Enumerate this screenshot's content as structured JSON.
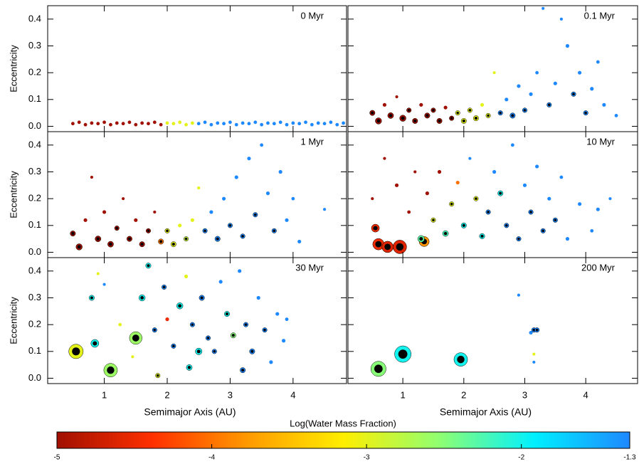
{
  "chart_data": [
    {
      "type": "scatter",
      "title": "0 Myr",
      "ylabel": "Eccentricity",
      "xlim": [
        0.1,
        4.85
      ],
      "ylim": [
        -0.02,
        0.45
      ],
      "xticks": [
        1,
        2,
        3,
        4
      ],
      "yticks": [
        {
          "value": 0,
          "label": "0.0"
        },
        0.1,
        0.2,
        0.3,
        0.4
      ],
      "x": [
        0.5,
        0.6,
        0.7,
        0.8,
        0.9,
        1.0,
        1.1,
        1.2,
        1.3,
        1.4,
        1.5,
        1.6,
        1.7,
        1.8,
        1.9,
        2.0,
        2.1,
        2.2,
        2.3,
        2.4,
        2.5,
        2.6,
        2.7,
        2.8,
        2.9,
        3.0,
        3.1,
        3.2,
        3.3,
        3.4,
        3.5,
        3.6,
        3.7,
        3.8,
        3.9,
        4.0,
        4.1,
        4.2,
        4.3,
        4.4,
        4.5,
        4.6,
        4.7,
        4.8
      ],
      "y": [
        0.01,
        0.015,
        0.006,
        0.012,
        0.01,
        0.015,
        0.006,
        0.012,
        0.01,
        0.015,
        0.006,
        0.012,
        0.01,
        0.015,
        0.006,
        0.012,
        0.01,
        0.015,
        0.006,
        0.012,
        0.01,
        0.015,
        0.006,
        0.012,
        0.01,
        0.015,
        0.006,
        0.012,
        0.01,
        0.015,
        0.006,
        0.012,
        0.01,
        0.015,
        0.006,
        0.012,
        0.01,
        0.015,
        0.006,
        0.012,
        0.01,
        0.015,
        0.006,
        0.012
      ],
      "mass": [
        0.008,
        0.008,
        0.008,
        0.008,
        0.008,
        0.008,
        0.008,
        0.008,
        0.008,
        0.008,
        0.008,
        0.008,
        0.008,
        0.008,
        0.008,
        0.008,
        0.008,
        0.008,
        0.008,
        0.008,
        0.008,
        0.008,
        0.008,
        0.008,
        0.008,
        0.008,
        0.008,
        0.008,
        0.008,
        0.008,
        0.008,
        0.008,
        0.008,
        0.008,
        0.008,
        0.008,
        0.008,
        0.008,
        0.008,
        0.008,
        0.008,
        0.008,
        0.008,
        0.008
      ],
      "water": [
        -5,
        -5,
        -5,
        -5,
        -5,
        -5,
        -5,
        -5,
        -5,
        -5,
        -5,
        -5,
        -5,
        -5,
        -5,
        -3,
        -3,
        -3,
        -3,
        -3,
        -1.3,
        -1.3,
        -1.3,
        -1.3,
        -1.3,
        -1.3,
        -1.3,
        -1.3,
        -1.3,
        -1.3,
        -1.3,
        -1.3,
        -1.3,
        -1.3,
        -1.3,
        -1.3,
        -1.3,
        -1.3,
        -1.3,
        -1.3,
        -1.3,
        -1.3,
        -1.3,
        -1.3
      ]
    },
    {
      "type": "scatter",
      "title": "0.1 Myr",
      "xlim": [
        0.1,
        4.85
      ],
      "ylim": [
        -0.02,
        0.45
      ],
      "xticks": [
        1,
        2,
        3,
        4
      ],
      "yticks": [
        0,
        0.1,
        0.2,
        0.3,
        0.4
      ],
      "x": [
        0.5,
        0.6,
        0.7,
        0.8,
        0.9,
        1.0,
        1.1,
        1.2,
        1.3,
        1.4,
        1.5,
        1.6,
        1.7,
        1.8,
        1.9,
        2.0,
        2.1,
        2.2,
        2.3,
        2.4,
        2.5,
        2.6,
        2.7,
        2.8,
        2.9,
        3.0,
        3.1,
        3.2,
        3.3,
        3.4,
        3.5,
        3.6,
        3.7,
        3.8,
        3.9,
        4.0,
        4.1,
        4.2,
        4.3,
        4.5
      ],
      "y": [
        0.05,
        0.02,
        0.08,
        0.04,
        0.11,
        0.03,
        0.06,
        0.02,
        0.08,
        0.04,
        0.06,
        0.02,
        0.07,
        0.03,
        0.05,
        0.02,
        0.06,
        0.03,
        0.08,
        0.04,
        0.2,
        0.05,
        0.1,
        0.04,
        0.15,
        0.06,
        0.12,
        0.2,
        0.44,
        0.08,
        0.16,
        0.4,
        0.3,
        0.12,
        0.2,
        0.05,
        0.14,
        0.24,
        0.08,
        0.04
      ],
      "mass": [
        0.03,
        0.05,
        0.01,
        0.04,
        0.005,
        0.05,
        0.02,
        0.03,
        0.01,
        0.03,
        0.02,
        0.03,
        0.01,
        0.02,
        0.02,
        0.03,
        0.02,
        0.03,
        0.01,
        0.02,
        0.005,
        0.02,
        0.01,
        0.03,
        0.01,
        0.02,
        0.01,
        0.008,
        0.005,
        0.02,
        0.01,
        0.005,
        0.01,
        0.02,
        0.01,
        0.02,
        0.01,
        0.008,
        0.01,
        0.008
      ],
      "water": [
        -5,
        -5,
        -5,
        -5,
        -5,
        -5,
        -5,
        -5,
        -5,
        -5,
        -5,
        -5,
        -5,
        -5,
        -3,
        -3,
        -3,
        -3,
        -3,
        -3,
        -3,
        -1.3,
        -1.3,
        -1.3,
        -1.3,
        -1.3,
        -1.3,
        -1.3,
        -1.3,
        -1.3,
        -1.3,
        -1.3,
        -1.3,
        -1.3,
        -1.3,
        -1.3,
        -1.3,
        -1.3,
        -1.3,
        -1.3
      ]
    },
    {
      "type": "scatter",
      "title": "1 Myr",
      "ylabel": "Eccentricity",
      "xlim": [
        0.1,
        4.85
      ],
      "ylim": [
        -0.02,
        0.45
      ],
      "xticks": [
        1,
        2,
        3,
        4
      ],
      "yticks": [
        {
          "value": 0,
          "label": "0.0"
        },
        0.1,
        0.2,
        0.3,
        0.4
      ],
      "x": [
        0.5,
        0.6,
        0.7,
        0.8,
        0.9,
        1.0,
        1.1,
        1.2,
        1.3,
        1.4,
        1.5,
        1.6,
        1.7,
        1.8,
        1.9,
        2.0,
        2.1,
        2.2,
        2.3,
        2.4,
        2.5,
        2.6,
        2.7,
        2.8,
        2.9,
        3.0,
        3.1,
        3.2,
        3.3,
        3.4,
        3.5,
        3.6,
        3.7,
        3.8,
        3.9,
        4.0,
        4.1,
        4.5
      ],
      "y": [
        0.07,
        0.02,
        0.12,
        0.28,
        0.05,
        0.15,
        0.03,
        0.09,
        0.2,
        0.05,
        0.12,
        0.03,
        0.08,
        0.15,
        0.04,
        0.08,
        0.03,
        0.1,
        0.05,
        0.12,
        0.24,
        0.08,
        0.15,
        0.05,
        0.2,
        0.1,
        0.28,
        0.06,
        0.35,
        0.14,
        0.4,
        0.22,
        0.08,
        0.3,
        0.12,
        0.2,
        0.04,
        0.16
      ],
      "mass": [
        0.03,
        0.05,
        0.01,
        0.005,
        0.04,
        0.01,
        0.04,
        0.02,
        0.005,
        0.03,
        0.01,
        0.03,
        0.02,
        0.005,
        0.03,
        0.02,
        0.03,
        0.01,
        0.02,
        0.01,
        0.005,
        0.02,
        0.01,
        0.03,
        0.01,
        0.02,
        0.01,
        0.02,
        0.01,
        0.02,
        0.008,
        0.01,
        0.02,
        0.01,
        0.01,
        0.008,
        0.01,
        0.005
      ],
      "water": [
        -5,
        -5,
        -5,
        -5,
        -5,
        -5,
        -5,
        -5,
        -5,
        -5,
        -5,
        -5,
        -5,
        -5,
        -4,
        -3,
        -3,
        -3,
        -2.8,
        -3,
        -3,
        -1.3,
        -1.3,
        -1.3,
        -1.3,
        -1.3,
        -1.3,
        -1.3,
        -1.3,
        -1.3,
        -1.3,
        -1.3,
        -1.3,
        -1.3,
        -1.3,
        -1.3,
        -1.3,
        -1.3
      ]
    },
    {
      "type": "scatter",
      "title": "10 Myr",
      "xlim": [
        0.1,
        4.85
      ],
      "ylim": [
        -0.02,
        0.45
      ],
      "xticks": [
        1,
        2,
        3,
        4
      ],
      "yticks": [
        0,
        0.1,
        0.2,
        0.3,
        0.4
      ],
      "x": [
        0.55,
        0.6,
        0.75,
        0.95,
        1.35,
        1.3,
        0.5,
        0.7,
        0.9,
        1.1,
        1.2,
        1.4,
        1.5,
        1.6,
        1.7,
        1.8,
        1.9,
        2.0,
        2.1,
        2.2,
        2.3,
        2.4,
        2.5,
        2.6,
        2.7,
        2.8,
        2.9,
        3.0,
        3.1,
        3.2,
        3.3,
        3.4,
        3.5,
        3.6,
        3.7,
        3.9,
        4.1,
        4.2,
        4.4
      ],
      "y": [
        0.09,
        0.03,
        0.02,
        0.02,
        0.04,
        0.05,
        0.2,
        0.35,
        0.25,
        0.15,
        0.3,
        0.22,
        0.12,
        0.3,
        0.07,
        0.18,
        0.26,
        0.1,
        0.35,
        0.2,
        0.06,
        0.15,
        0.3,
        0.22,
        0.1,
        0.4,
        0.05,
        0.25,
        0.15,
        0.32,
        0.08,
        0.2,
        0.12,
        0.28,
        0.05,
        0.18,
        0.08,
        0.16,
        0.2
      ],
      "mass": [
        0.1,
        0.3,
        0.3,
        0.5,
        0.2,
        0.06,
        0.005,
        0.005,
        0.01,
        0.008,
        0.005,
        0.01,
        0.02,
        0.01,
        0.04,
        0.02,
        0.01,
        0.03,
        0.005,
        0.02,
        0.03,
        0.02,
        0.01,
        0.03,
        0.02,
        0.008,
        0.02,
        0.01,
        0.02,
        0.01,
        0.02,
        0.01,
        0.02,
        0.008,
        0.01,
        0.01,
        0.008,
        0.01,
        0.005
      ],
      "water": [
        -4.5,
        -4.5,
        -4.6,
        -4.6,
        -3.8,
        -2.3,
        -5,
        -5,
        -5,
        -5,
        -5,
        -5,
        -3,
        -5,
        -2.2,
        -3,
        -4,
        -2,
        -1.3,
        -3,
        -2,
        -1.3,
        -1.3,
        -2,
        -1.3,
        -1.3,
        -1.3,
        -1.3,
        -1.3,
        -1.3,
        -1.3,
        -1.3,
        -1.3,
        -1.3,
        -1.3,
        -1.3,
        -1.3,
        -1.3,
        -1.3
      ]
    },
    {
      "type": "scatter",
      "title": "30 Myr",
      "ylabel": "Eccentricity",
      "xlabel": "Semimajor Axis (AU)",
      "xlim": [
        0.1,
        4.85
      ],
      "ylim": [
        -0.02,
        0.45
      ],
      "xticks": [
        1,
        2,
        3,
        4
      ],
      "yticks": [
        {
          "value": 0,
          "label": "0.0"
        },
        0.1,
        0.2,
        0.3,
        0.4
      ],
      "x": [
        0.55,
        1.1,
        1.5,
        0.85,
        0.8,
        1.6,
        2.2,
        2.5,
        2.35,
        3.2,
        0.9,
        1.0,
        1.25,
        1.45,
        1.7,
        1.8,
        1.95,
        2.0,
        2.1,
        2.3,
        2.4,
        2.55,
        2.65,
        2.75,
        2.85,
        2.95,
        3.05,
        3.15,
        3.25,
        3.35,
        3.45,
        3.55,
        3.65,
        3.75,
        3.85,
        3.9,
        1.85
      ],
      "y": [
        0.1,
        0.03,
        0.15,
        0.13,
        0.3,
        0.3,
        0.27,
        0.1,
        0.04,
        0.03,
        0.39,
        0.35,
        0.2,
        0.08,
        0.42,
        0.18,
        0.34,
        0.22,
        0.12,
        0.38,
        0.2,
        0.3,
        0.15,
        0.1,
        0.36,
        0.24,
        0.16,
        0.4,
        0.2,
        0.1,
        0.3,
        0.18,
        0.06,
        0.24,
        0.14,
        0.22,
        0.01
      ],
      "mass": [
        0.6,
        0.5,
        0.4,
        0.1,
        0.03,
        0.05,
        0.05,
        0.06,
        0.04,
        0.03,
        0.005,
        0.005,
        0.008,
        0.005,
        0.03,
        0.02,
        0.02,
        0.01,
        0.02,
        0.01,
        0.02,
        0.03,
        0.02,
        0.02,
        0.01,
        0.03,
        0.03,
        0.01,
        0.02,
        0.03,
        0.01,
        0.02,
        0.01,
        0.01,
        0.01,
        0.008,
        0.02
      ],
      "water": [
        -3,
        -2.6,
        -2.6,
        -2,
        -2,
        -2,
        -2,
        -2,
        -2,
        -1.3,
        -3,
        -1.3,
        -3,
        -3,
        -2,
        -1.3,
        -1.3,
        -4.5,
        -1.3,
        -3,
        -1.3,
        -1.3,
        -1.3,
        -1.3,
        -1.3,
        -2,
        -2.5,
        -1.3,
        -1.3,
        -1.3,
        -1.3,
        -1.3,
        -1.3,
        -1.3,
        -1.3,
        -1.3,
        -3
      ]
    },
    {
      "type": "scatter",
      "title": "200 Myr",
      "xlabel": "Semimajor Axis (AU)",
      "xlim": [
        0.1,
        4.85
      ],
      "ylim": [
        -0.02,
        0.45
      ],
      "xticks": [
        1,
        2,
        3,
        4
      ],
      "yticks": [
        0,
        0.1,
        0.2,
        0.3,
        0.4
      ],
      "x": [
        0.6,
        1.0,
        1.95,
        3.15,
        2.9,
        3.1,
        3.15,
        3.2,
        3.15
      ],
      "y": [
        0.035,
        0.09,
        0.07,
        0.06,
        0.31,
        0.17,
        0.18,
        0.18,
        0.09
      ],
      "mass": [
        0.7,
        0.9,
        0.5,
        0.005,
        0.005,
        0.01,
        0.02,
        0.02,
        0.005
      ],
      "water": [
        -2.5,
        -2,
        -2,
        -1.3,
        -1.3,
        -1.3,
        -1.3,
        -1.3,
        -3
      ]
    }
  ],
  "colorbar": {
    "label": "Log(Water Mass Fraction)",
    "clim": [
      -5,
      -1.3
    ],
    "ticks": [
      -5,
      -4,
      -3,
      -2,
      -1.3
    ],
    "colors": [
      "#a01000",
      "#ff3000",
      "#ff9a00",
      "#ffee00",
      "#90ff70",
      "#00f0ff",
      "#1e88ff"
    ]
  }
}
